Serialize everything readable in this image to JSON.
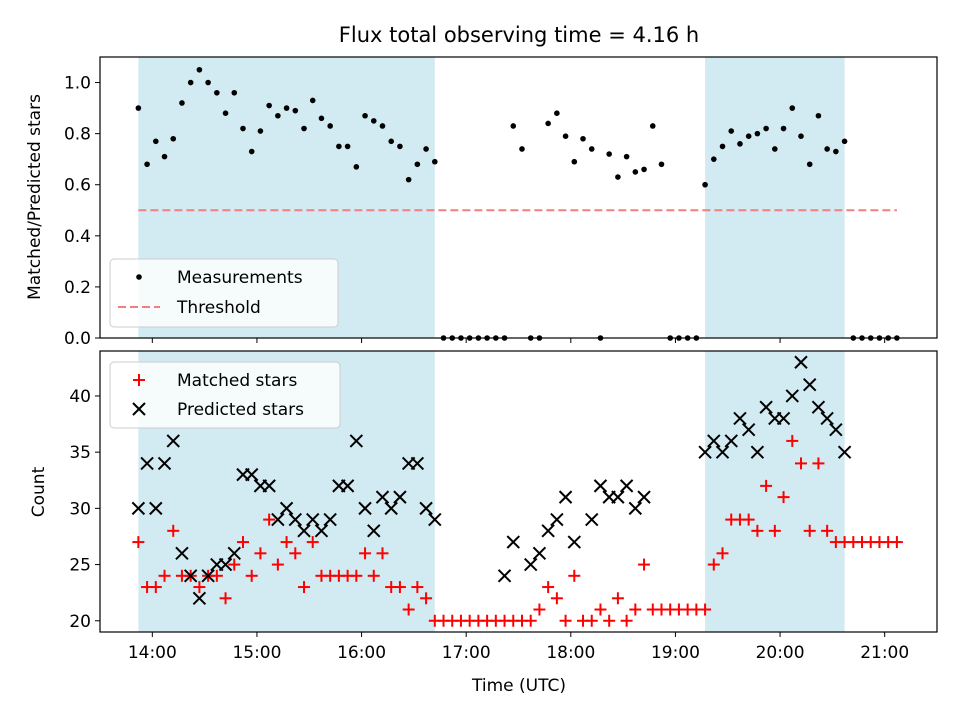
{
  "chart_data": [
    {
      "type": "scatter",
      "title": "Flux total observing time = 4.16 h",
      "xlabel": "",
      "ylabel": "Matched/Predicted stars",
      "xlim": [
        "13:30",
        "21:30"
      ],
      "ylim": [
        0,
        1.1
      ],
      "yticks": [
        "0.0",
        "0.2",
        "0.4",
        "0.6",
        "0.8",
        "1.0"
      ],
      "shaded_intervals": [
        [
          "13:52",
          "16:42"
        ],
        [
          "19:17",
          "20:37"
        ]
      ],
      "shade_color": "#add8e6",
      "legend": {
        "position": "lower-left"
      },
      "series": [
        {
          "name": "Measurements",
          "marker": "dot",
          "color": "#000000",
          "points": [
            [
              "13:52",
              0.9
            ],
            [
              "13:57",
              0.68
            ],
            [
              "14:02",
              0.77
            ],
            [
              "14:07",
              0.71
            ],
            [
              "14:12",
              0.78
            ],
            [
              "14:17",
              0.92
            ],
            [
              "14:22",
              1.0
            ],
            [
              "14:27",
              1.05
            ],
            [
              "14:32",
              1.0
            ],
            [
              "14:37",
              0.96
            ],
            [
              "14:42",
              0.88
            ],
            [
              "14:47",
              0.96
            ],
            [
              "14:52",
              0.82
            ],
            [
              "14:57",
              0.73
            ],
            [
              "15:02",
              0.81
            ],
            [
              "15:07",
              0.91
            ],
            [
              "15:12",
              0.87
            ],
            [
              "15:17",
              0.9
            ],
            [
              "15:22",
              0.89
            ],
            [
              "15:27",
              0.82
            ],
            [
              "15:32",
              0.93
            ],
            [
              "15:37",
              0.86
            ],
            [
              "15:42",
              0.83
            ],
            [
              "15:47",
              0.75
            ],
            [
              "15:52",
              0.75
            ],
            [
              "15:57",
              0.67
            ],
            [
              "16:02",
              0.87
            ],
            [
              "16:07",
              0.85
            ],
            [
              "16:12",
              0.83
            ],
            [
              "16:17",
              0.77
            ],
            [
              "16:22",
              0.75
            ],
            [
              "16:27",
              0.62
            ],
            [
              "16:32",
              0.68
            ],
            [
              "16:37",
              0.74
            ],
            [
              "16:42",
              0.69
            ],
            [
              "16:47",
              0
            ],
            [
              "16:52",
              0
            ],
            [
              "16:57",
              0
            ],
            [
              "17:02",
              0
            ],
            [
              "17:07",
              0
            ],
            [
              "17:12",
              0
            ],
            [
              "17:17",
              0
            ],
            [
              "17:22",
              0
            ],
            [
              "17:27",
              0.83
            ],
            [
              "17:32",
              0.74
            ],
            [
              "17:37",
              0
            ],
            [
              "17:42",
              0
            ],
            [
              "17:47",
              0.84
            ],
            [
              "17:52",
              0.88
            ],
            [
              "17:57",
              0.79
            ],
            [
              "18:02",
              0.69
            ],
            [
              "18:07",
              0.78
            ],
            [
              "18:12",
              0.74
            ],
            [
              "18:17",
              0
            ],
            [
              "18:22",
              0.72
            ],
            [
              "18:27",
              0.63
            ],
            [
              "18:32",
              0.71
            ],
            [
              "18:37",
              0.65
            ],
            [
              "18:42",
              0.66
            ],
            [
              "18:47",
              0.83
            ],
            [
              "18:52",
              0.68
            ],
            [
              "18:57",
              0
            ],
            [
              "19:02",
              0
            ],
            [
              "19:07",
              0
            ],
            [
              "19:12",
              0
            ],
            [
              "19:17",
              0.6
            ],
            [
              "19:22",
              0.7
            ],
            [
              "19:27",
              0.75
            ],
            [
              "19:32",
              0.81
            ],
            [
              "19:37",
              0.76
            ],
            [
              "19:42",
              0.79
            ],
            [
              "19:47",
              0.8
            ],
            [
              "19:52",
              0.82
            ],
            [
              "19:57",
              0.74
            ],
            [
              "20:02",
              0.82
            ],
            [
              "20:07",
              0.9
            ],
            [
              "20:12",
              0.79
            ],
            [
              "20:17",
              0.68
            ],
            [
              "20:22",
              0.87
            ],
            [
              "20:27",
              0.74
            ],
            [
              "20:32",
              0.73
            ],
            [
              "20:37",
              0.77
            ],
            [
              "20:42",
              0
            ],
            [
              "20:47",
              0
            ],
            [
              "20:52",
              0
            ],
            [
              "20:57",
              0
            ],
            [
              "21:02",
              0
            ],
            [
              "21:07",
              0
            ]
          ]
        },
        {
          "name": "Threshold",
          "marker": "dashed-line",
          "color": "#f08080",
          "points": [
            [
              "13:52",
              0.5
            ],
            [
              "21:07",
              0.5
            ]
          ]
        }
      ]
    },
    {
      "type": "scatter",
      "title": "",
      "xlabel": "Time (UTC)",
      "ylabel": "Count",
      "xlim": [
        "13:30",
        "21:30"
      ],
      "ylim": [
        19,
        44
      ],
      "xticks": [
        "14:00",
        "15:00",
        "16:00",
        "17:00",
        "18:00",
        "19:00",
        "20:00",
        "21:00"
      ],
      "yticks": [
        "20",
        "25",
        "30",
        "35",
        "40"
      ],
      "shaded_intervals": [
        [
          "13:52",
          "16:42"
        ],
        [
          "19:17",
          "20:37"
        ]
      ],
      "shade_color": "#add8e6",
      "legend": {
        "position": "top-left"
      },
      "series": [
        {
          "name": "Matched stars",
          "marker": "plus",
          "color": "#ff0000",
          "points": [
            [
              "13:52",
              27
            ],
            [
              "13:57",
              23
            ],
            [
              "14:02",
              23
            ],
            [
              "14:07",
              24
            ],
            [
              "14:12",
              28
            ],
            [
              "14:17",
              24
            ],
            [
              "14:22",
              24
            ],
            [
              "14:27",
              23
            ],
            [
              "14:32",
              24
            ],
            [
              "14:37",
              24
            ],
            [
              "14:42",
              22
            ],
            [
              "14:47",
              25
            ],
            [
              "14:52",
              27
            ],
            [
              "14:57",
              24
            ],
            [
              "15:02",
              26
            ],
            [
              "15:07",
              29
            ],
            [
              "15:12",
              25
            ],
            [
              "15:17",
              27
            ],
            [
              "15:22",
              26
            ],
            [
              "15:27",
              23
            ],
            [
              "15:32",
              27
            ],
            [
              "15:37",
              24
            ],
            [
              "15:42",
              24
            ],
            [
              "15:47",
              24
            ],
            [
              "15:52",
              24
            ],
            [
              "15:57",
              24
            ],
            [
              "16:02",
              26
            ],
            [
              "16:07",
              24
            ],
            [
              "16:12",
              26
            ],
            [
              "16:17",
              23
            ],
            [
              "16:22",
              23
            ],
            [
              "16:27",
              21
            ],
            [
              "16:32",
              23
            ],
            [
              "16:37",
              22
            ],
            [
              "16:42",
              20
            ],
            [
              "16:47",
              20
            ],
            [
              "16:52",
              20
            ],
            [
              "16:57",
              20
            ],
            [
              "17:02",
              20
            ],
            [
              "17:07",
              20
            ],
            [
              "17:12",
              20
            ],
            [
              "17:17",
              20
            ],
            [
              "17:22",
              20
            ],
            [
              "17:27",
              20
            ],
            [
              "17:32",
              20
            ],
            [
              "17:37",
              20
            ],
            [
              "17:42",
              21
            ],
            [
              "17:47",
              23
            ],
            [
              "17:52",
              22
            ],
            [
              "17:57",
              20
            ],
            [
              "18:02",
              24
            ],
            [
              "18:07",
              20
            ],
            [
              "18:12",
              20
            ],
            [
              "18:17",
              21
            ],
            [
              "18:22",
              20
            ],
            [
              "18:27",
              22
            ],
            [
              "18:32",
              20
            ],
            [
              "18:37",
              21
            ],
            [
              "18:42",
              25
            ],
            [
              "18:47",
              21
            ],
            [
              "18:52",
              21
            ],
            [
              "18:57",
              21
            ],
            [
              "19:02",
              21
            ],
            [
              "19:07",
              21
            ],
            [
              "19:12",
              21
            ],
            [
              "19:17",
              21
            ],
            [
              "19:22",
              25
            ],
            [
              "19:27",
              26
            ],
            [
              "19:32",
              29
            ],
            [
              "19:37",
              29
            ],
            [
              "19:42",
              29
            ],
            [
              "19:47",
              28
            ],
            [
              "19:52",
              32
            ],
            [
              "19:57",
              28
            ],
            [
              "20:02",
              31
            ],
            [
              "20:07",
              36
            ],
            [
              "20:12",
              34
            ],
            [
              "20:17",
              28
            ],
            [
              "20:22",
              34
            ],
            [
              "20:27",
              28
            ],
            [
              "20:32",
              27
            ],
            [
              "20:37",
              27
            ],
            [
              "20:42",
              27
            ],
            [
              "20:47",
              27
            ],
            [
              "20:52",
              27
            ],
            [
              "20:57",
              27
            ],
            [
              "21:02",
              27
            ],
            [
              "21:07",
              27
            ]
          ]
        },
        {
          "name": "Predicted stars",
          "marker": "x",
          "color": "#000000",
          "points": [
            [
              "13:52",
              30
            ],
            [
              "13:57",
              34
            ],
            [
              "14:02",
              30
            ],
            [
              "14:07",
              34
            ],
            [
              "14:12",
              36
            ],
            [
              "14:17",
              26
            ],
            [
              "14:22",
              24
            ],
            [
              "14:27",
              22
            ],
            [
              "14:32",
              24
            ],
            [
              "14:37",
              25
            ],
            [
              "14:42",
              25
            ],
            [
              "14:47",
              26
            ],
            [
              "14:52",
              33
            ],
            [
              "14:57",
              33
            ],
            [
              "15:02",
              32
            ],
            [
              "15:07",
              32
            ],
            [
              "15:12",
              29
            ],
            [
              "15:17",
              30
            ],
            [
              "15:22",
              29
            ],
            [
              "15:27",
              28
            ],
            [
              "15:32",
              29
            ],
            [
              "15:37",
              28
            ],
            [
              "15:42",
              29
            ],
            [
              "15:47",
              32
            ],
            [
              "15:52",
              32
            ],
            [
              "15:57",
              36
            ],
            [
              "16:02",
              30
            ],
            [
              "16:07",
              28
            ],
            [
              "16:12",
              31
            ],
            [
              "16:17",
              30
            ],
            [
              "16:22",
              31
            ],
            [
              "16:27",
              34
            ],
            [
              "16:32",
              34
            ],
            [
              "16:37",
              30
            ],
            [
              "16:42",
              29
            ],
            [
              "17:22",
              24
            ],
            [
              "17:27",
              27
            ],
            [
              "17:37",
              25
            ],
            [
              "17:42",
              26
            ],
            [
              "17:47",
              28
            ],
            [
              "17:52",
              29
            ],
            [
              "17:57",
              31
            ],
            [
              "18:02",
              27
            ],
            [
              "18:12",
              29
            ],
            [
              "18:17",
              32
            ],
            [
              "18:22",
              31
            ],
            [
              "18:27",
              31
            ],
            [
              "18:32",
              32
            ],
            [
              "18:37",
              30
            ],
            [
              "18:42",
              31
            ],
            [
              "19:17",
              35
            ],
            [
              "19:22",
              36
            ],
            [
              "19:27",
              35
            ],
            [
              "19:32",
              36
            ],
            [
              "19:37",
              38
            ],
            [
              "19:42",
              37
            ],
            [
              "19:47",
              35
            ],
            [
              "19:52",
              39
            ],
            [
              "19:57",
              38
            ],
            [
              "20:02",
              38
            ],
            [
              "20:07",
              40
            ],
            [
              "20:12",
              43
            ],
            [
              "20:17",
              41
            ],
            [
              "20:22",
              39
            ],
            [
              "20:27",
              38
            ],
            [
              "20:32",
              37
            ],
            [
              "20:37",
              35
            ]
          ]
        }
      ]
    }
  ]
}
